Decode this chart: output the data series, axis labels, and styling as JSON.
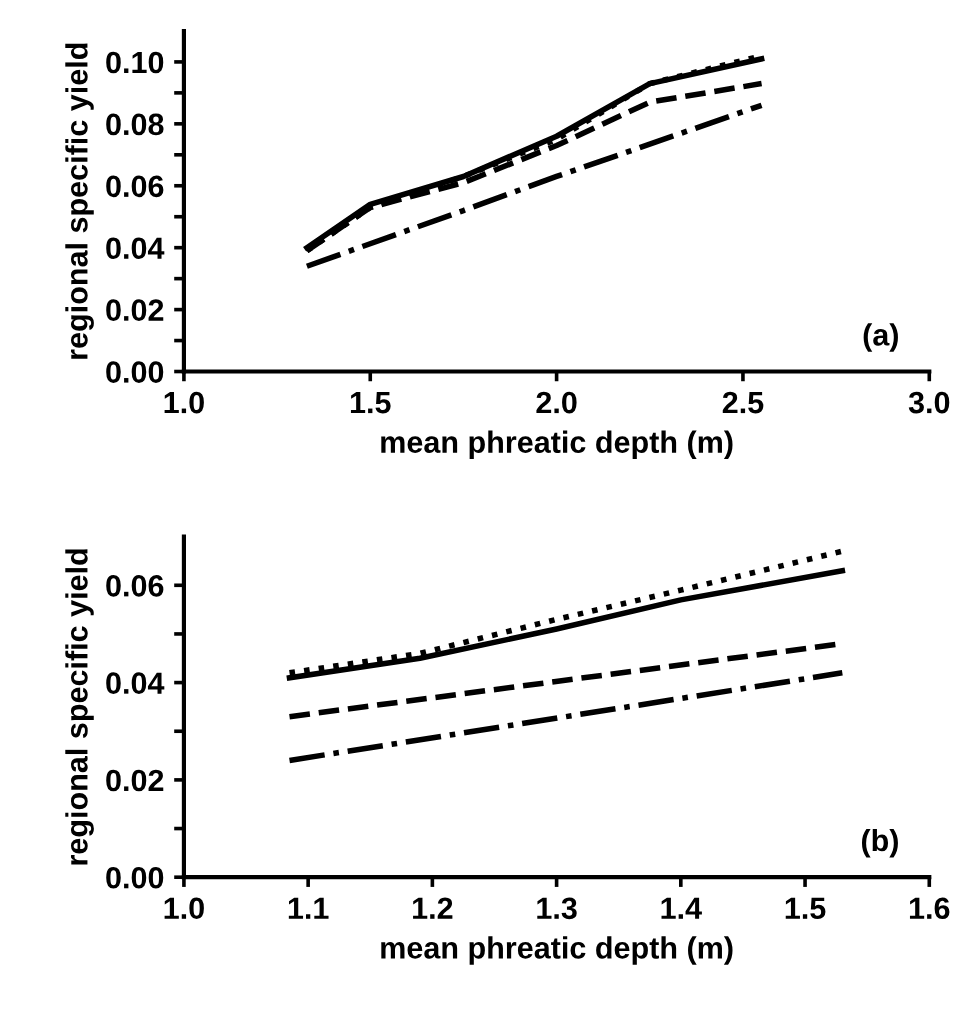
{
  "chart_data": [
    {
      "type": "line",
      "xlabel": "mean phreatic depth (m)",
      "ylabel": "regional specific yield",
      "annotations": [
        "(a)"
      ],
      "xlim": [
        1.0,
        3.0
      ],
      "xticks": [
        {
          "value": 1.0,
          "label": "1.0"
        },
        1.5,
        {
          "value": 2.0,
          "label": "2.0"
        },
        2.5,
        {
          "value": 3.0,
          "label": "3.0"
        }
      ],
      "ylim": [
        0,
        0.11
      ],
      "yticks": [
        {
          "value": 0,
          "label": "0.00"
        },
        {
          "value": 0.01,
          "label": null
        },
        0.02,
        {
          "value": 0.03,
          "label": null
        },
        0.04,
        {
          "value": 0.05,
          "label": null
        },
        0.06,
        {
          "value": 0.07,
          "label": null
        },
        0.08,
        {
          "value": 0.09,
          "label": null
        },
        {
          "value": 0.1,
          "label": "0.10"
        }
      ],
      "grid": false,
      "legend": false,
      "series": [
        {
          "color": "#000000",
          "line_style": "solid",
          "x": [
            1.33,
            1.5,
            1.75,
            2.0,
            2.25,
            2.55
          ],
          "values": [
            0.04,
            0.054,
            0.063,
            0.076,
            0.093,
            0.101
          ]
        },
        {
          "color": "#000000",
          "line_style": "dotted",
          "x": [
            1.33,
            1.5,
            1.75,
            2.0,
            2.25,
            2.55
          ],
          "values": [
            0.039,
            0.053,
            0.063,
            0.075,
            0.093,
            0.102
          ]
        },
        {
          "color": "#000000",
          "line_style": "dashed",
          "x": [
            1.33,
            1.5,
            1.75,
            2.0,
            2.25,
            2.55
          ],
          "values": [
            0.039,
            0.053,
            0.061,
            0.073,
            0.087,
            0.093
          ]
        },
        {
          "color": "#000000",
          "line_style": "dashdot",
          "x": [
            1.33,
            1.75,
            2.0,
            2.55
          ],
          "values": [
            0.034,
            0.052,
            0.063,
            0.086
          ]
        }
      ]
    },
    {
      "type": "line",
      "xlabel": "mean phreatic depth (m)",
      "ylabel": "regional specific yield",
      "annotations": [
        "(b)"
      ],
      "xlim": [
        1.0,
        1.6
      ],
      "xticks": [
        {
          "value": 1.0,
          "label": "1.0"
        },
        1.1,
        1.2,
        1.3,
        1.4,
        1.5,
        1.6
      ],
      "ylim": [
        0,
        0.07
      ],
      "yticks": [
        {
          "value": 0,
          "label": "0.00"
        },
        {
          "value": 0.01,
          "label": null
        },
        0.02,
        {
          "value": 0.03,
          "label": null
        },
        0.04,
        {
          "value": 0.05,
          "label": null
        },
        0.06
      ],
      "grid": false,
      "legend": false,
      "series": [
        {
          "color": "#000000",
          "line_style": "solid",
          "x": [
            1.085,
            1.19,
            1.3,
            1.4,
            1.53
          ],
          "values": [
            0.041,
            0.045,
            0.051,
            0.057,
            0.063
          ]
        },
        {
          "color": "#000000",
          "line_style": "dotted",
          "x": [
            1.085,
            1.19,
            1.3,
            1.4,
            1.53
          ],
          "values": [
            0.042,
            0.046,
            0.053,
            0.059,
            0.067
          ]
        },
        {
          "color": "#000000",
          "line_style": "dashed",
          "x": [
            1.085,
            1.53
          ],
          "values": [
            0.033,
            0.048
          ]
        },
        {
          "color": "#000000",
          "line_style": "dashdot",
          "x": [
            1.085,
            1.53
          ],
          "values": [
            0.024,
            0.042
          ]
        }
      ]
    }
  ]
}
